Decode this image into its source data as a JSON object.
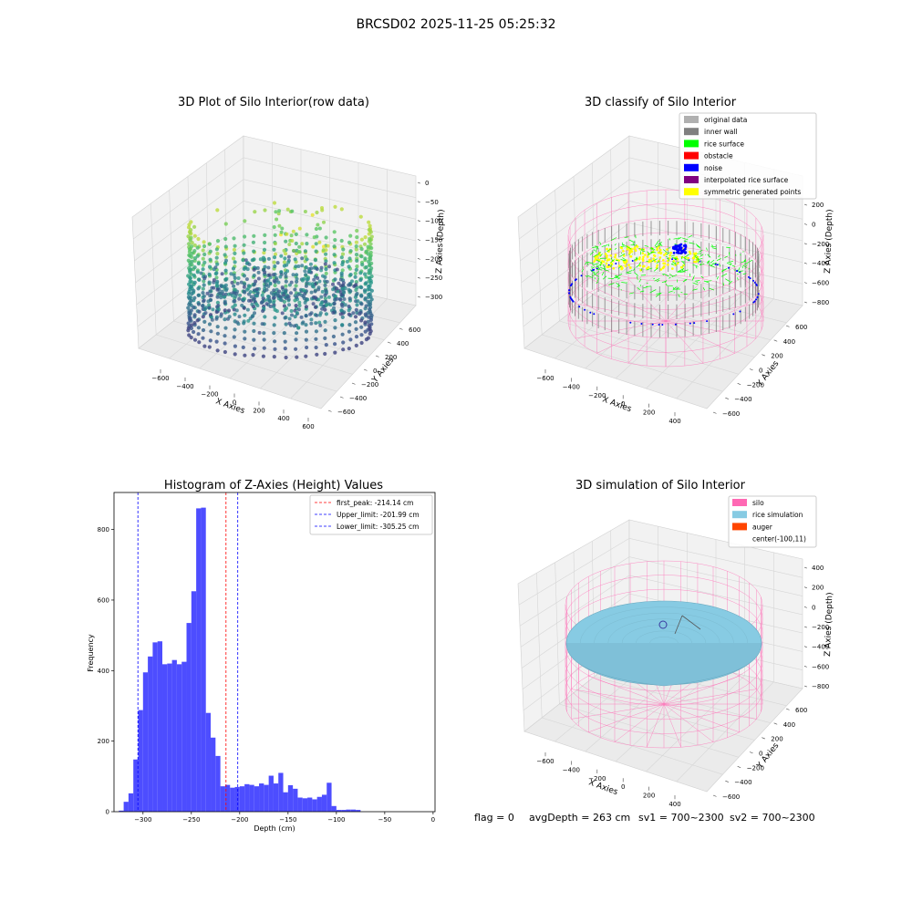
{
  "suptitle": "BRCSD02 2025-11-25 05:25:32",
  "footer": {
    "flag": "flag = 0",
    "avg": "avgDepth = 263 cm",
    "sv1": "sv1 = 700~2300",
    "sv2": "sv2 = 700~2300"
  },
  "colors": {
    "hist_bar": "#4d4dff",
    "silo": "#ff69b4",
    "rice_sim": "#87cbe3",
    "auger": "#ff4500",
    "original": "#b0b0b0",
    "inner_wall": "#808080",
    "rice_surface": "#00ff00",
    "obstacle": "#ff0000",
    "noise": "#0000ff",
    "interp": "#800080",
    "symmetric": "#ffff00"
  },
  "chart_data": [
    {
      "type": "scatter3d",
      "title": "3D Plot of Silo Interior(row data)",
      "xlabel": "X Axies",
      "ylabel": "Y Axies",
      "zlabel": "Z Axies (Depth)",
      "xticks": [
        "−600",
        "−400",
        "−200",
        "0",
        "200",
        "400",
        "600"
      ],
      "yticks": [
        "600",
        "400",
        "200",
        "0",
        "−200",
        "−400",
        "−600"
      ],
      "zticks": [
        "0",
        "−50",
        "−100",
        "−150",
        "−200",
        "−250",
        "−300"
      ],
      "zlim": [
        -330,
        0
      ],
      "colormap": "viridis"
    },
    {
      "type": "scatter3d",
      "title": "3D classify of Silo Interior",
      "xlabel": "X Axies",
      "ylabel": "Y Axies",
      "zlabel": "Z Axies (Depth)",
      "xticks": [
        "−600",
        "−400",
        "−200",
        "0",
        "200",
        "400"
      ],
      "yticks": [
        "600",
        "400",
        "200",
        "0",
        "−200",
        "−400",
        "−600"
      ],
      "zticks": [
        "200",
        "0",
        "−200",
        "−400",
        "−600",
        "−800"
      ],
      "zlim": [
        -900,
        200
      ],
      "legend": [
        "original data",
        "inner wall",
        "rice surface",
        "obstacle",
        "noise",
        "interpolated rice surface",
        "symmetric generated points"
      ],
      "legend_position": "top-right"
    },
    {
      "type": "bar",
      "title": "Histogram of Z-Axies (Height) Values",
      "xlabel": "Depth (cm)",
      "ylabel": "Frequency",
      "xlim": [
        -330,
        2
      ],
      "ylim": [
        0,
        905
      ],
      "xticks": [
        -300,
        -250,
        -200,
        -150,
        -100,
        -50,
        0
      ],
      "yticks": [
        0,
        200,
        400,
        600,
        800
      ],
      "bin_start": -325,
      "bin_width": 5,
      "values": [
        3,
        28,
        52,
        148,
        288,
        395,
        440,
        480,
        483,
        418,
        420,
        430,
        418,
        425,
        535,
        625,
        860,
        862,
        280,
        210,
        158,
        72,
        76,
        68,
        70,
        72,
        78,
        76,
        72,
        80,
        76,
        102,
        80,
        110,
        55,
        75,
        65,
        40,
        38,
        40,
        35,
        42,
        48,
        82,
        16,
        5,
        5,
        6,
        6,
        5
      ],
      "lines": [
        {
          "label": "first_peak: -214.14 cm",
          "x": -214.14,
          "color": "#ff0000"
        },
        {
          "label": "Upper_limit: -201.99 cm",
          "x": -201.99,
          "color": "#0000ff"
        },
        {
          "label": "Lower_limit: -305.25 cm",
          "x": -305.25,
          "color": "#0000ff"
        }
      ],
      "legend_position": "top-right"
    },
    {
      "type": "surface3d",
      "title": "3D simulation of Silo Interior",
      "xlabel": "X Axies",
      "ylabel": "Y Axies",
      "zlabel": "Z Axies (Depth)",
      "xticks": [
        "−600",
        "−400",
        "−200",
        "0",
        "200",
        "400"
      ],
      "yticks": [
        "600",
        "400",
        "200",
        "0",
        "−200",
        "−400",
        "−600"
      ],
      "zticks": [
        "400",
        "200",
        "0",
        "−200",
        "−400",
        "−600",
        "−800"
      ],
      "zlim": [
        -900,
        400
      ],
      "legend": [
        "silo",
        "rice simulation",
        "auger",
        "center(-100,11)"
      ],
      "legend_position": "top-right"
    }
  ]
}
